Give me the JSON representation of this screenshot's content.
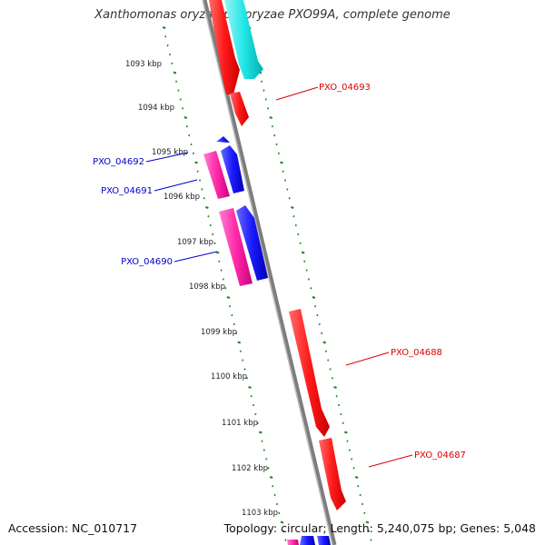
{
  "title": "Xanthomonas oryzae pv. oryzae PXO99A, complete genome",
  "footer": {
    "accession": "Accession: NC_010717",
    "summary": "Topology: circular; Length: 5,240,075 bp; Genes: 5,048"
  },
  "colors": {
    "backbone": "#8c8c8c",
    "tick": "#1f8a1f",
    "red": "#ff1a1a",
    "pink": "#ff2aa8",
    "blue": "#1a1aff",
    "cyan": "#22e6e6",
    "label_red": "#dd0000",
    "label_blue": "#0000cc"
  },
  "kbp_labels": [
    "1093 kbp",
    "1094 kbp",
    "1095 kbp",
    "1096 kbp",
    "1097 kbp",
    "1098 kbp",
    "1099 kbp",
    "1100 kbp",
    "1101 kbp",
    "1102 kbp",
    "1103 kbp"
  ],
  "gene_labels": [
    {
      "text": "PXO_04693",
      "color": "red"
    },
    {
      "text": "PXO_04692",
      "color": "blue"
    },
    {
      "text": "PXO_04691",
      "color": "blue"
    },
    {
      "text": "PXO_04690",
      "color": "blue"
    },
    {
      "text": "PXO_04688",
      "color": "red"
    },
    {
      "text": "PXO_04687",
      "color": "red"
    }
  ]
}
